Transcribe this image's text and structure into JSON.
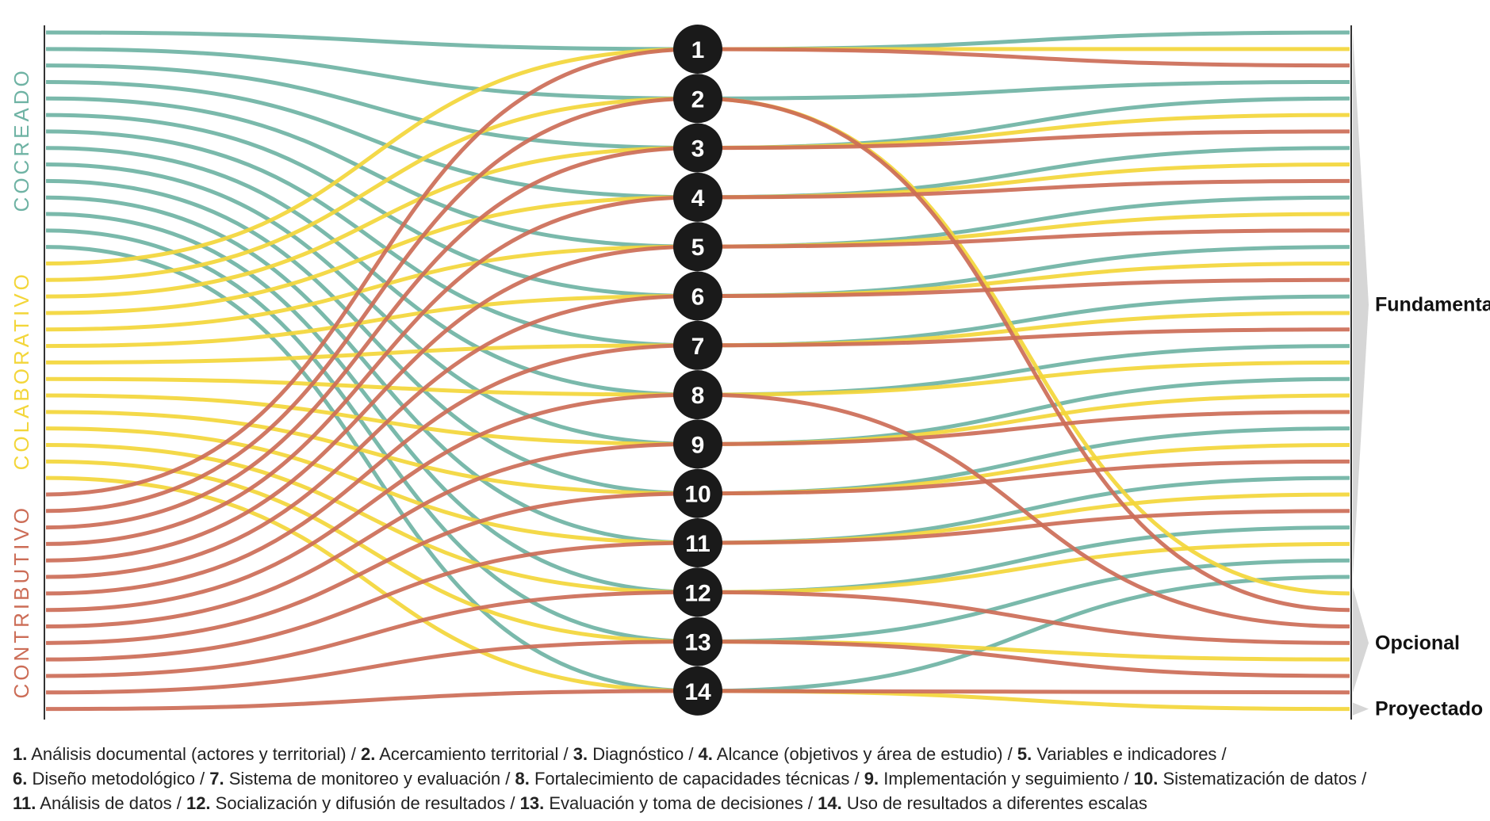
{
  "colors": {
    "cocreado": "#6fb3a4",
    "colaborativo": "#f3d63a",
    "contributivo": "#cc6d57",
    "node": "#1a1a1a",
    "bracket": "#d6d6d6"
  },
  "categories": [
    {
      "key": "cocreado",
      "label": "COCREADO",
      "count": 14
    },
    {
      "key": "colaborativo",
      "label": "COLABORATIVO",
      "count": 14
    },
    {
      "key": "contributivo",
      "label": "CONTRIBUTIVO",
      "count": 14
    }
  ],
  "nodes": [
    "1",
    "2",
    "3",
    "4",
    "5",
    "6",
    "7",
    "8",
    "9",
    "10",
    "11",
    "12",
    "13",
    "14"
  ],
  "outcomes": [
    {
      "key": "fundamental",
      "label": "Fundamental"
    },
    {
      "key": "opcional",
      "label": "Opcional"
    },
    {
      "key": "proyectado",
      "label": "Proyectado"
    }
  ],
  "legend": [
    {
      "num": "1.",
      "text": "Análisis documental (actores y territorial)"
    },
    {
      "num": "2.",
      "text": "Acercamiento territorial"
    },
    {
      "num": "3.",
      "text": "Diagnóstico"
    },
    {
      "num": "4.",
      "text": "Alcance (objetivos y área de estudio)"
    },
    {
      "num": "5.",
      "text": "Variables e indicadores"
    },
    {
      "num": "6.",
      "text": "Diseño metodológico"
    },
    {
      "num": "7.",
      "text": "Sistema de monitoreo y evaluación"
    },
    {
      "num": "8.",
      "text": "Fortalecimiento de capacidades técnicas"
    },
    {
      "num": "9.",
      "text": "Implementación y seguimiento"
    },
    {
      "num": "10.",
      "text": "Sistematización de datos"
    },
    {
      "num": "11.",
      "text": "Análisis de datos"
    },
    {
      "num": "12.",
      "text": "Socialización y difusión de resultados"
    },
    {
      "num": "13.",
      "text": "Evaluación y toma de decisiones"
    },
    {
      "num": "14.",
      "text": "Uso de resultados a diferentes escalas"
    }
  ],
  "flows": {
    "cocreado": {
      "nodes": [
        1,
        2,
        3,
        4,
        5,
        6,
        7,
        8,
        9,
        10,
        11,
        12,
        13,
        14
      ],
      "outcomes": [
        "fundamental",
        "fundamental",
        "fundamental",
        "fundamental",
        "fundamental",
        "fundamental",
        "fundamental",
        "fundamental",
        "fundamental",
        "fundamental",
        "fundamental",
        "fundamental",
        "fundamental",
        "fundamental"
      ]
    },
    "colaborativo": {
      "nodes": [
        1,
        2,
        3,
        4,
        5,
        6,
        7,
        8,
        9,
        10,
        11,
        12,
        13,
        14
      ],
      "outcomes": [
        "fundamental",
        "opcional",
        "fundamental",
        "fundamental",
        "fundamental",
        "fundamental",
        "fundamental",
        "fundamental",
        "fundamental",
        "fundamental",
        "fundamental",
        "fundamental",
        "opcional",
        "proyectado"
      ]
    },
    "contributivo": {
      "nodes": [
        1,
        2,
        3,
        4,
        5,
        6,
        7,
        8,
        9,
        10,
        11,
        12,
        13,
        14
      ],
      "outcomes": [
        "fundamental",
        "opcional",
        "fundamental",
        "fundamental",
        "fundamental",
        "fundamental",
        "fundamental",
        "opcional",
        "fundamental",
        "fundamental",
        "fundamental",
        "opcional",
        "opcional",
        "opcional"
      ]
    }
  }
}
